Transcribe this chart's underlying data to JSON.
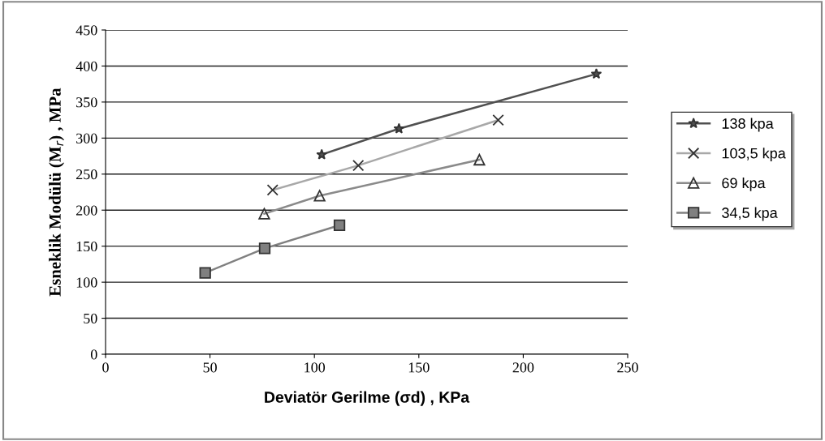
{
  "chart_data": {
    "type": "line",
    "xlabel": "Deviatör Gerilme (σd) , KPa",
    "ylabel": "Esneklik Modülü (M$_{r}$) , MPa",
    "xlim": [
      0,
      250
    ],
    "xticks": [
      0,
      50,
      100,
      150,
      200,
      250
    ],
    "ylim": [
      0,
      450
    ],
    "yticks": [
      0,
      50,
      100,
      150,
      200,
      250,
      300,
      350,
      400,
      450
    ],
    "grid": "y",
    "legend": "right",
    "line_style": "solid",
    "series": [
      {
        "name": "138 kpa",
        "color": "#505050",
        "marker": "star",
        "x": [
          103.5,
          140.5,
          235
        ],
        "values": [
          277,
          313,
          389
        ]
      },
      {
        "name": "103,5 kpa",
        "color": "#a8a8a8",
        "marker": "cross",
        "x": [
          80,
          121,
          188
        ],
        "values": [
          228,
          262,
          325
        ]
      },
      {
        "name": "69 kpa",
        "color": "#8a8a8a",
        "marker": "triangle",
        "x": [
          76,
          102.5,
          179
        ],
        "values": [
          195,
          220,
          270
        ]
      },
      {
        "name": "34,5 kpa",
        "color": "#808080",
        "marker": "square",
        "x": [
          47.7,
          76.2,
          112
        ],
        "values": [
          113,
          147,
          179
        ]
      }
    ]
  }
}
